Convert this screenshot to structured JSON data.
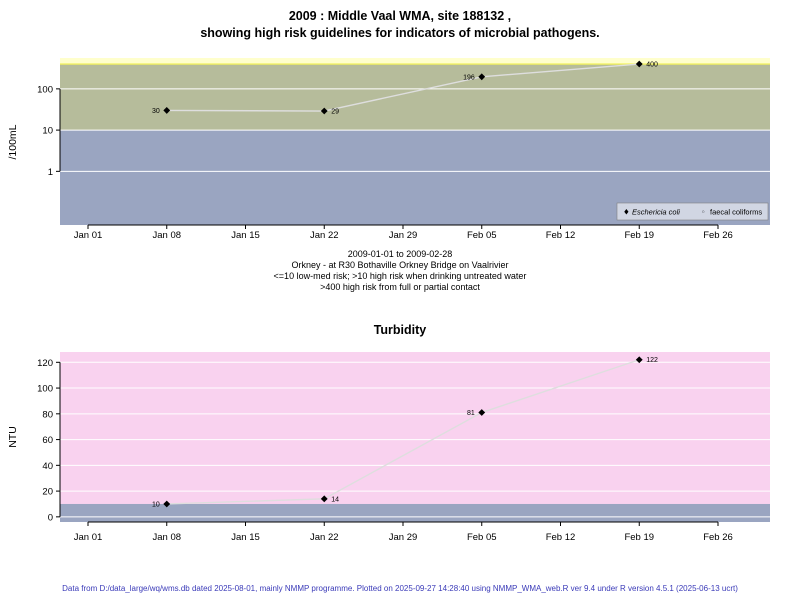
{
  "page": {
    "background": "#ffffff",
    "footer_text": "Data from D:/data_large/wq/wms.db dated 2025-08-01, mainly NMMP programme. Plotted on 2025-09-27 14:28:40 using NMMP_WMA_web.R ver 9.4 under R version 4.5.1 (2025-06-13 ucrt)",
    "footer_color": "#3a3ab8"
  },
  "chart_data": [
    {
      "id": "ecoli",
      "type": "line",
      "title_line1": "2009 : Middle Vaal WMA, site 188132 ,",
      "title_line2": "showing high risk guidelines for indicators of microbial pathogens.",
      "ylabel": "/100mL",
      "xlabel": "",
      "yscale": "log",
      "ylim": [
        0.05,
        560
      ],
      "yticks": [
        1,
        10,
        100
      ],
      "ytick_labels": [
        "1",
        "10",
        "100"
      ],
      "x_tick_labels": [
        "Jan 01",
        "Jan 08",
        "Jan 15",
        "Jan 22",
        "Jan 29",
        "Feb 05",
        "Feb 12",
        "Feb 19",
        "Feb 26"
      ],
      "grid": true,
      "legend_position": "bottom-right",
      "bands": [
        {
          "name": "above-400-high-risk-contact",
          "from": 400,
          "to": 560,
          "color": "#ffffcc"
        },
        {
          "name": "10-400-high-risk-drinking",
          "from": 10,
          "to": 400,
          "color": "#b6bc9b"
        },
        {
          "name": "below-10-low-med-risk",
          "from": 0.05,
          "to": 10,
          "color": "#9aa5c1"
        }
      ],
      "guideline": {
        "value": 400,
        "color": "#f0f060"
      },
      "series": [
        {
          "name": "Eschericia coli",
          "marker": "diamond",
          "color": "#000000",
          "points": [
            {
              "x": "Jan 08",
              "xi": 1,
              "value": 30,
              "label": "30",
              "label_side": "left"
            },
            {
              "x": "Jan 22",
              "xi": 3,
              "value": 29,
              "label": "29",
              "label_side": "right"
            },
            {
              "x": "Feb 05",
              "xi": 5,
              "value": 196,
              "label": "196",
              "label_side": "left"
            },
            {
              "x": "Feb 19",
              "xi": 7,
              "value": 400,
              "label": "400",
              "label_side": "right"
            }
          ]
        },
        {
          "name": "faecal coliforms",
          "marker": "circle",
          "color": "#000000",
          "points": []
        }
      ],
      "legend": [
        {
          "symbol": "♦",
          "label": "Eschericia coli",
          "italic": true
        },
        {
          "symbol": "◦",
          "label": "faecal coliforms",
          "italic": false
        }
      ],
      "captions": [
        "2009-01-01 to 2009-02-28",
        "Orkney - at R30 Bothaville Orkney Bridge on Vaalrivier",
        "<=10 low-med risk; >10 high risk when drinking untreated water",
        ">400 high risk from full or partial contact"
      ]
    },
    {
      "id": "turbidity",
      "type": "line",
      "title": "Turbidity",
      "ylabel": "NTU",
      "xlabel": "",
      "yscale": "linear",
      "ylim": [
        -4,
        128
      ],
      "yticks": [
        0,
        20,
        40,
        60,
        80,
        100,
        120
      ],
      "ytick_labels": [
        "0",
        "20",
        "40",
        "60",
        "80",
        "100",
        "120"
      ],
      "x_tick_labels": [
        "Jan 01",
        "Jan 08",
        "Jan 15",
        "Jan 22",
        "Jan 29",
        "Feb 05",
        "Feb 12",
        "Feb 19",
        "Feb 26"
      ],
      "grid": true,
      "bands": [
        {
          "name": "above-10",
          "from": 10,
          "to": 128,
          "color": "#f9d2ef"
        },
        {
          "name": "below-10-low-risk",
          "from": -4,
          "to": 10,
          "color": "#9aa5c1"
        }
      ],
      "series": [
        {
          "name": "Turbidity",
          "marker": "diamond",
          "color": "#000000",
          "points": [
            {
              "x": "Jan 08",
              "xi": 1,
              "value": 10,
              "label": "10",
              "label_side": "left"
            },
            {
              "x": "Jan 22",
              "xi": 3,
              "value": 14,
              "label": "14",
              "label_side": "right"
            },
            {
              "x": "Feb 05",
              "xi": 5,
              "value": 81,
              "label": "81",
              "label_side": "left"
            },
            {
              "x": "Feb 19",
              "xi": 7,
              "value": 122,
              "label": "122",
              "label_side": "right"
            }
          ]
        }
      ]
    }
  ]
}
